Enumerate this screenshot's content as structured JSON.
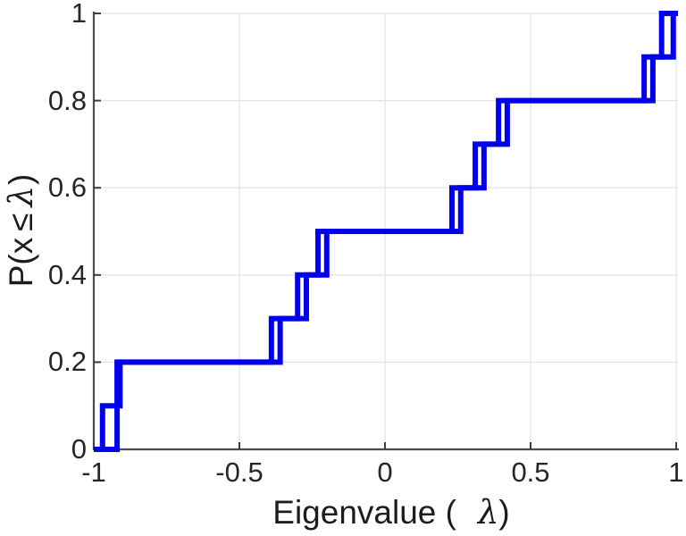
{
  "figure": {
    "background": "#ffffff"
  },
  "chart_data": {
    "type": "line",
    "subtype": "empirical-cdf-staircase",
    "title": "",
    "xlabel": "Eigenvalue ( λ)",
    "xlabel_parts": {
      "prefix": "Eigenvalue (",
      "lambda": "λ",
      "suffix": ")"
    },
    "ylabel": "P(x ≤ λ)",
    "ylabel_parts": {
      "prefix": "P(x",
      "leq": "≤",
      "lambda": "λ",
      "suffix": ")"
    },
    "xlim": [
      -1,
      1
    ],
    "ylim": [
      0,
      1
    ],
    "grid": true,
    "legend": null,
    "x_ticks": {
      "values": [
        -1,
        -0.5,
        0,
        0.5,
        1
      ],
      "labels": [
        "-1",
        "-0.5",
        "0",
        "0.5",
        "1"
      ]
    },
    "y_ticks": {
      "values": [
        0,
        0.2,
        0.4,
        0.6,
        0.8,
        1
      ],
      "labels": [
        "0",
        "0.2",
        "0.4",
        "0.6",
        "0.8",
        "1"
      ]
    },
    "step": 0.1,
    "series": [
      {
        "name": "ecdf-staircase-1",
        "start": [
          -1,
          0
        ],
        "jump_x": [
          -0.97,
          -0.92,
          -0.39,
          -0.3,
          -0.23,
          0.23,
          0.31,
          0.39,
          0.89,
          0.95
        ],
        "levels": [
          0.1,
          0.2,
          0.3,
          0.4,
          0.5,
          0.6,
          0.7,
          0.8,
          0.9,
          1.0
        ]
      },
      {
        "name": "ecdf-staircase-2",
        "start": [
          -1,
          0
        ],
        "jump_x": [
          -0.92,
          -0.91,
          -0.36,
          -0.27,
          -0.2,
          0.26,
          0.34,
          0.42,
          0.92,
          0.99
        ],
        "levels": [
          0.1,
          0.2,
          0.3,
          0.4,
          0.5,
          0.6,
          0.7,
          0.8,
          0.9,
          1.0
        ]
      }
    ],
    "colors": {
      "line": "#0000ee",
      "axis": "#4d4d4d",
      "tick": "#3d3d3d",
      "grid": "#e4e4e4",
      "text": "#262626"
    },
    "line_width": 6
  }
}
